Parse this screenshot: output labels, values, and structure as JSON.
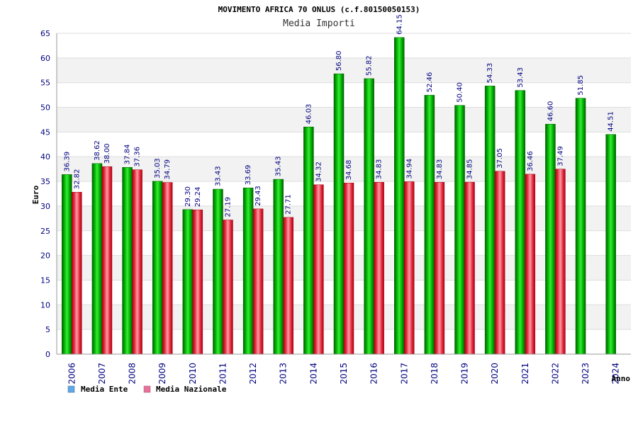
{
  "chart_data": {
    "type": "bar",
    "title": "MOVIMENTO AFRICA 70 ONLUS (c.f.80150050153)",
    "subtitle": "Media Importi",
    "ylabel": "Euro",
    "xlabel": "Anno",
    "ylim": [
      0,
      65
    ],
    "yticks": [
      0,
      5,
      10,
      15,
      20,
      25,
      30,
      35,
      40,
      45,
      50,
      55,
      60,
      65
    ],
    "grid": "alternating horizontal bands",
    "legend_position": "bottom-left",
    "categories": [
      "2006",
      "2007",
      "2008",
      "2009",
      "2010",
      "2011",
      "2012",
      "2013",
      "2014",
      "2015",
      "2016",
      "2017",
      "2018",
      "2019",
      "2020",
      "2021",
      "2022",
      "2023",
      "2024"
    ],
    "series": [
      {
        "name": "Media Ente",
        "bar_color": "#00c000",
        "legend_color": "#5fa8e8",
        "values": [
          36.39,
          38.62,
          37.84,
          35.03,
          29.3,
          33.43,
          33.69,
          35.43,
          46.03,
          56.8,
          55.82,
          64.15,
          52.46,
          50.4,
          54.33,
          53.43,
          46.6,
          51.85,
          44.51
        ],
        "labels": [
          "36.39",
          "38.62",
          "37.84",
          "35.03",
          "29.30",
          "33.43",
          "33.69",
          "35.43",
          "46.03",
          "56.80",
          "55.82",
          "64.15",
          "52.46",
          "50.40",
          "54.33",
          "53.43",
          "46.60",
          "51.85",
          "44.51"
        ]
      },
      {
        "name": "Media Nazionale",
        "bar_color": "#e83040",
        "legend_color": "#e8709a",
        "values": [
          32.82,
          38.0,
          37.36,
          34.79,
          29.24,
          27.19,
          29.43,
          27.71,
          34.32,
          34.68,
          34.83,
          34.94,
          34.83,
          34.85,
          37.05,
          36.46,
          37.49,
          null,
          null
        ],
        "labels": [
          "32.82",
          "38.00",
          "37.36",
          "34.79",
          "29.24",
          "27.19",
          "29.43",
          "27.71",
          "34.32",
          "34.68",
          "34.83",
          "34.94",
          "34.83",
          "34.85",
          "37.05",
          "36.46",
          "37.49",
          "",
          ""
        ]
      }
    ]
  }
}
